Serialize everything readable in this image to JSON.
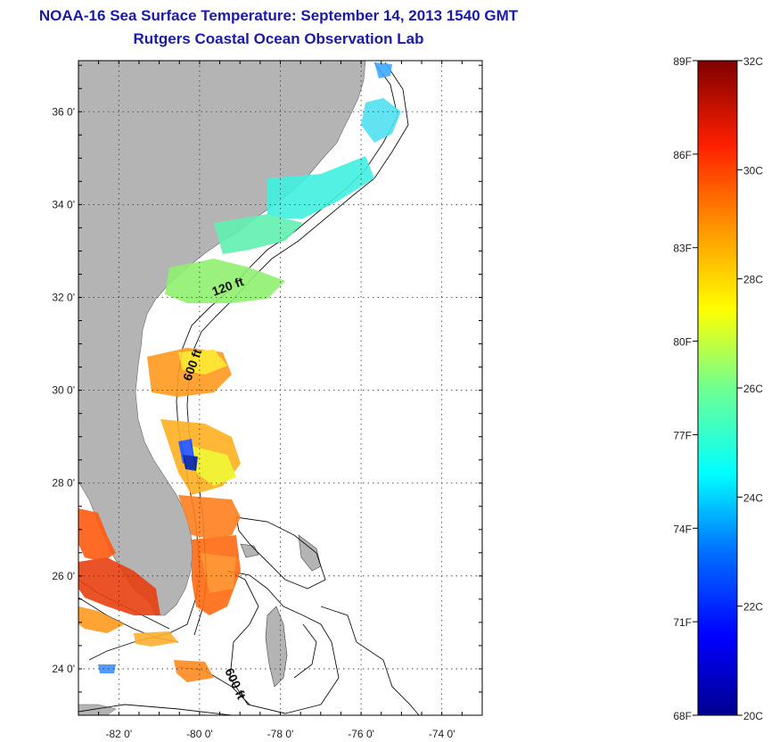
{
  "title": {
    "line1": "NOAA-16 Sea Surface Temperature:  September 14, 2013 1540 GMT",
    "line2": "Rutgers Coastal Ocean Observation Lab"
  },
  "map": {
    "lat_ticks": [
      {
        "value": 36,
        "label": "36 0'"
      },
      {
        "value": 34,
        "label": "34 0'"
      },
      {
        "value": 32,
        "label": "32 0'"
      },
      {
        "value": 30,
        "label": "30 0'"
      },
      {
        "value": 28,
        "label": "28 0'"
      },
      {
        "value": 26,
        "label": "26 0'"
      },
      {
        "value": 24,
        "label": "24 0'"
      }
    ],
    "lon_ticks": [
      {
        "value": -82,
        "label": "-82 0'"
      },
      {
        "value": -80,
        "label": "-80 0'"
      },
      {
        "value": -78,
        "label": "-78 0'"
      },
      {
        "value": -76,
        "label": "-76 0'"
      },
      {
        "value": -74,
        "label": "-74 0'"
      }
    ],
    "lat_range": [
      23,
      37.1
    ],
    "lon_range": [
      -83,
      -73
    ],
    "contour_labels": [
      "120 ft",
      "600 ft",
      "600 ft"
    ],
    "land_color": "#b4b4b4"
  },
  "colorbar": {
    "range_c": [
      20,
      32
    ],
    "range_f": [
      68,
      89
    ],
    "labels_c": [
      "32C",
      "30C",
      "28C",
      "26C",
      "24C",
      "22C",
      "20C"
    ],
    "labels_f": [
      "89F",
      "86F",
      "83F",
      "80F",
      "77F",
      "74F",
      "71F",
      "68F"
    ]
  }
}
